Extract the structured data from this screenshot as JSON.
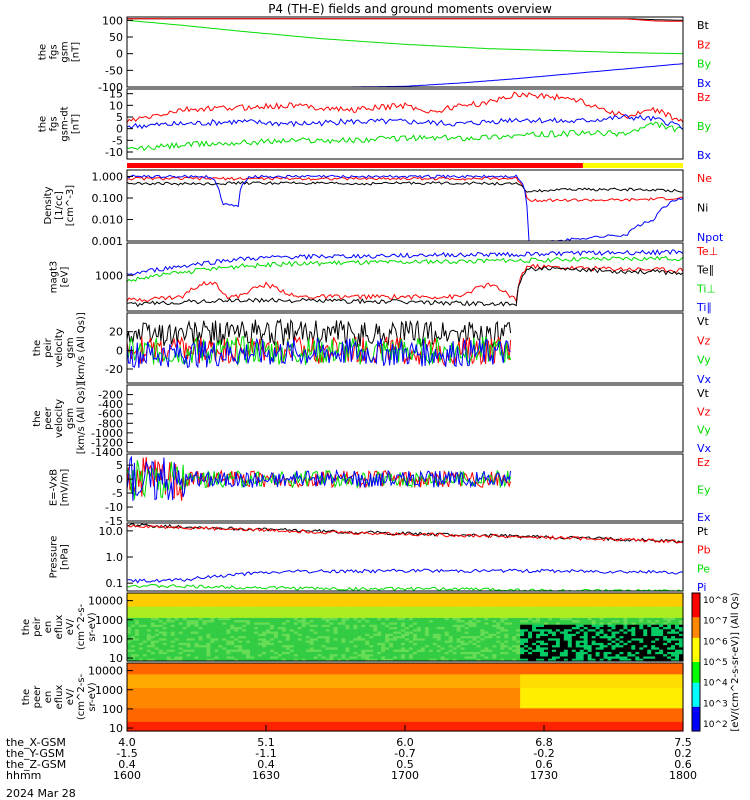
{
  "title": "P4 (TH-E) fields and ground moments overview",
  "colors": {
    "black": "#000000",
    "red": "#ff0000",
    "green": "#00dd00",
    "blue": "#0000ff",
    "yellow": "#ffff00"
  },
  "chart_data": [
    {
      "type": "line",
      "name": "fgs_gsm",
      "ylabel_lines": [
        "the",
        "fgs",
        "gsm",
        "[nT]"
      ],
      "ylim": [
        -100,
        110
      ],
      "yticks": [
        "100",
        "50",
        "0",
        "-50",
        "-100"
      ],
      "ytick_values": [
        100,
        50,
        0,
        -50,
        -100
      ],
      "legend": [
        "Bt",
        "Bz",
        "By",
        "Bx"
      ],
      "series": [
        {
          "name": "Bt",
          "color": "black",
          "x": [
            0,
            0.8,
            0.9,
            0.95,
            1
          ],
          "y": [
            105,
            105,
            105,
            102,
            100
          ]
        },
        {
          "name": "Bz",
          "color": "red",
          "x": [
            0,
            0.8,
            0.9,
            0.95,
            1
          ],
          "y": [
            105,
            105,
            104,
            98,
            97
          ]
        },
        {
          "name": "By",
          "color": "green",
          "x": [
            0,
            0.1,
            0.2,
            0.35,
            0.5,
            0.65,
            0.8,
            0.9,
            1
          ],
          "y": [
            100,
            85,
            68,
            45,
            28,
            15,
            8,
            3,
            0
          ]
        },
        {
          "name": "Bx",
          "color": "blue",
          "x": [
            0,
            0.2,
            0.4,
            0.5,
            0.6,
            0.7,
            0.8,
            0.9,
            1
          ],
          "y": [
            -100,
            -100,
            -100,
            -98,
            -88,
            -75,
            -60,
            -45,
            -30
          ]
        }
      ]
    },
    {
      "type": "line",
      "name": "fgs_gse_detrended",
      "ylabel_lines": [
        "the",
        "fgs",
        "gsm-dt",
        "[nT]"
      ],
      "ylim": [
        -13,
        17
      ],
      "yticks": [
        "15",
        "10",
        "5",
        "0",
        "-5",
        "-10"
      ],
      "ytick_values": [
        15,
        10,
        5,
        0,
        -5,
        -10
      ],
      "legend": [
        "Bz",
        "By",
        "Bx"
      ],
      "series": [
        {
          "name": "Bz",
          "color": "red",
          "x": [
            0,
            0.1,
            0.2,
            0.3,
            0.4,
            0.5,
            0.55,
            0.6,
            0.65,
            0.7,
            0.75,
            0.8,
            0.85,
            0.9,
            0.95,
            1
          ],
          "y": [
            3,
            8,
            9,
            10,
            8,
            10,
            7,
            10,
            11,
            15,
            14,
            13,
            9,
            5,
            8,
            3
          ]
        },
        {
          "name": "By",
          "color": "green",
          "x": [
            0,
            0.1,
            0.2,
            0.3,
            0.4,
            0.5,
            0.6,
            0.7,
            0.8,
            0.9,
            0.95,
            1
          ],
          "y": [
            -9,
            -7,
            -6,
            -5,
            -5,
            -4,
            -4,
            -3,
            -2,
            -2,
            2,
            -1
          ]
        },
        {
          "name": "Bx",
          "color": "blue",
          "x": [
            0,
            0.1,
            0.2,
            0.3,
            0.4,
            0.5,
            0.6,
            0.7,
            0.8,
            0.9,
            0.95,
            1
          ],
          "y": [
            1,
            2,
            3,
            2,
            3,
            3,
            2,
            4,
            3,
            5,
            4,
            1
          ]
        }
      ]
    },
    {
      "type": "line",
      "name": "density",
      "yscale": "log",
      "ylabel_lines": [
        "Density",
        "[1/cc]",
        "[cm^-3]"
      ],
      "ylim": [
        0.001,
        2
      ],
      "yticks": [
        "1.000",
        "0.100",
        "0.010",
        "0.001"
      ],
      "ytick_values": [
        1,
        0.1,
        0.01,
        0.001
      ],
      "legend": [
        "Ne",
        "Ni",
        "Npot"
      ],
      "series": [
        {
          "name": "Ne",
          "color": "red",
          "x": [
            0,
            0.15,
            0.2,
            0.25,
            0.3,
            0.35,
            0.55,
            0.6,
            0.65,
            0.7,
            0.72,
            0.8,
            0.9,
            1
          ],
          "y": [
            0.8,
            0.8,
            0.8,
            0.8,
            0.8,
            0.8,
            0.8,
            0.8,
            0.8,
            0.8,
            0.08,
            0.08,
            0.08,
            0.1
          ]
        },
        {
          "name": "Ni",
          "color": "black",
          "x": [
            0,
            0.1,
            0.2,
            0.3,
            0.4,
            0.5,
            0.6,
            0.7,
            0.72,
            0.8,
            0.9,
            1
          ],
          "y": [
            0.5,
            0.45,
            0.5,
            0.5,
            0.45,
            0.5,
            0.5,
            0.45,
            0.2,
            0.25,
            0.25,
            0.22
          ]
        },
        {
          "name": "Npot",
          "color": "blue",
          "x": [
            0,
            0.15,
            0.17,
            0.2,
            0.22,
            0.3,
            0.5,
            0.6,
            0.7,
            0.72,
            0.75,
            0.9,
            0.95,
            1
          ],
          "y": [
            1,
            1,
            0.05,
            0.04,
            1,
            1,
            1,
            1,
            1,
            0.001,
            0.0008,
            0.002,
            0.01,
            0.1
          ]
        }
      ]
    },
    {
      "type": "line",
      "name": "temperature",
      "yscale": "log",
      "ylabel_lines": [
        "magt3",
        "[eV]"
      ],
      "ylim": [
        100,
        8000
      ],
      "yticks": [
        "1000"
      ],
      "ytick_values": [
        1000
      ],
      "legend": [
        "Te⊥",
        "Te∥",
        "Ti⊥",
        "Ti∥"
      ],
      "series": [
        {
          "name": "Te⊥",
          "color": "red",
          "x": [
            0,
            0.1,
            0.15,
            0.18,
            0.2,
            0.25,
            0.3,
            0.5,
            0.6,
            0.65,
            0.7,
            0.72,
            0.8,
            0.9,
            1
          ],
          "y": [
            200,
            250,
            700,
            250,
            250,
            550,
            250,
            250,
            250,
            550,
            200,
            1800,
            1600,
            1500,
            1400
          ]
        },
        {
          "name": "Te∥",
          "color": "black",
          "x": [
            0,
            0.1,
            0.2,
            0.3,
            0.5,
            0.6,
            0.7,
            0.72,
            0.8,
            0.9,
            1
          ],
          "y": [
            150,
            180,
            200,
            200,
            180,
            170,
            150,
            1600,
            1400,
            1300,
            1200
          ]
        },
        {
          "name": "Ti⊥",
          "color": "green",
          "x": [
            0,
            0.1,
            0.2,
            0.3,
            0.4,
            0.5,
            0.6,
            0.7,
            0.8,
            0.9,
            1
          ],
          "y": [
            700,
            1200,
            1800,
            2100,
            2300,
            2300,
            2500,
            2600,
            2800,
            2900,
            3000
          ]
        },
        {
          "name": "Ti∥",
          "color": "blue",
          "x": [
            0,
            0.1,
            0.2,
            0.3,
            0.4,
            0.5,
            0.6,
            0.7,
            0.8,
            0.9,
            1
          ],
          "y": [
            1000,
            1800,
            2800,
            3300,
            3400,
            3600,
            3800,
            3900,
            4200,
            4300,
            4500
          ]
        }
      ]
    },
    {
      "type": "line",
      "name": "peir_velocity",
      "ylabel_lines": [
        "the",
        "peir",
        "velocity",
        "gsm",
        "[km/s (All Qs)]"
      ],
      "ylim": [
        -35,
        40
      ],
      "yticks": [
        "20",
        "0",
        "-20"
      ],
      "ytick_values": [
        20,
        0,
        -20
      ],
      "legend": [
        "Vt",
        "Vz",
        "Vy",
        "Vx"
      ],
      "series": [
        {
          "name": "Vt",
          "color": "black",
          "x": [
            0,
            0.2,
            0.4,
            0.6,
            0.69
          ],
          "y": [
            18,
            19,
            18,
            18,
            17
          ]
        },
        {
          "name": "Vz",
          "color": "red",
          "x": [
            0,
            0.2,
            0.4,
            0.6,
            0.69
          ],
          "y": [
            0,
            1,
            0,
            -1,
            0
          ]
        },
        {
          "name": "Vy",
          "color": "green",
          "x": [
            0,
            0.2,
            0.4,
            0.6,
            0.69
          ],
          "y": [
            -2,
            0,
            -1,
            0,
            -1
          ]
        },
        {
          "name": "Vx",
          "color": "blue",
          "x": [
            0,
            0.2,
            0.4,
            0.6,
            0.69
          ],
          "y": [
            -4,
            -3,
            -2,
            -3,
            -2
          ]
        }
      ]
    },
    {
      "type": "line",
      "name": "peer_velocity",
      "ylabel_lines": [
        "the",
        "peer",
        "velocity",
        "gsm",
        "[km/s (All Qs)]"
      ],
      "ylim": [
        -1400,
        0
      ],
      "yticks": [
        "-200",
        "-400",
        "-600",
        "-800",
        "-1000",
        "-1200",
        "-1400"
      ],
      "ytick_values": [
        -200,
        -400,
        -600,
        -800,
        -1000,
        -1200,
        -1400
      ],
      "legend": [
        "Vt",
        "Vz",
        "Vy",
        "Vx"
      ],
      "series": []
    },
    {
      "type": "line",
      "name": "efield",
      "ylabel_lines": [
        "E=-VxB",
        "[mV/m]"
      ],
      "ylim": [
        -15,
        9
      ],
      "yticks": [
        "5",
        "0",
        "-5",
        "-10",
        "-15"
      ],
      "ytick_values": [
        5,
        0,
        -5,
        -10,
        -15
      ],
      "legend": [
        "Ez",
        "Ey",
        "Ex"
      ],
      "series": [
        {
          "name": "Ez",
          "color": "red",
          "x": [
            0,
            0.2,
            0.4,
            0.6,
            0.69
          ],
          "y": [
            0,
            0,
            0,
            0,
            0
          ]
        },
        {
          "name": "Ey",
          "color": "green",
          "x": [
            0,
            0.2,
            0.4,
            0.6,
            0.69
          ],
          "y": [
            0,
            0,
            0,
            0,
            0
          ]
        },
        {
          "name": "Ex",
          "color": "blue",
          "x": [
            0,
            0.2,
            0.4,
            0.6,
            0.69
          ],
          "y": [
            0,
            0,
            0,
            0,
            0
          ]
        }
      ]
    },
    {
      "type": "line",
      "name": "pressure",
      "yscale": "log",
      "ylabel_lines": [
        "Pressure",
        "[nPa]"
      ],
      "ylim": [
        0.05,
        20
      ],
      "yticks": [
        "10.0",
        "1.0",
        "0.1"
      ],
      "ytick_values": [
        10,
        1,
        0.1
      ],
      "legend": [
        "Pt",
        "Pb",
        "Pe",
        "Pi"
      ],
      "series": [
        {
          "name": "Pt",
          "color": "black",
          "x": [
            0,
            0.2,
            0.4,
            0.6,
            0.8,
            1
          ],
          "y": [
            17,
            12,
            9,
            7,
            5.5,
            4
          ]
        },
        {
          "name": "Pb",
          "color": "red",
          "x": [
            0,
            0.2,
            0.4,
            0.6,
            0.8,
            1
          ],
          "y": [
            16,
            11.5,
            8.5,
            6.8,
            5.3,
            3.9
          ]
        },
        {
          "name": "Pe",
          "color": "green",
          "x": [
            0,
            0.2,
            0.4,
            0.6,
            0.8,
            0.9,
            1
          ],
          "y": [
            0.08,
            0.07,
            0.06,
            0.06,
            0.05,
            0.05,
            0.05
          ]
        },
        {
          "name": "Pi",
          "color": "blue",
          "x": [
            0,
            0.1,
            0.2,
            0.3,
            0.5,
            0.7,
            0.9,
            1
          ],
          "y": [
            0.12,
            0.13,
            0.22,
            0.28,
            0.3,
            0.3,
            0.28,
            0.25
          ]
        }
      ]
    },
    {
      "type": "heatmap",
      "name": "peir_eflux",
      "ylabel_lines": [
        "the",
        "peir",
        "en",
        "eflux",
        "eV/",
        "(cm^2-s-",
        "sr-eV)"
      ],
      "yscale": "log",
      "ylim": [
        7,
        25000
      ],
      "yticks": [
        "10000",
        "1000",
        "100",
        "10"
      ],
      "ytick_values": [
        10000,
        1000,
        100,
        10
      ]
    },
    {
      "type": "heatmap",
      "name": "peer_eflux",
      "ylabel_lines": [
        "the",
        "peer",
        "en",
        "eflux",
        "eV/",
        "(cm^2-s-",
        "sr-eV)"
      ],
      "yscale": "log",
      "ylim": [
        7,
        25000
      ],
      "yticks": [
        "10000",
        "1000",
        "100",
        "10"
      ],
      "ytick_values": [
        10000,
        1000,
        100,
        10
      ]
    }
  ],
  "colorbar": {
    "ticks": [
      "10^8",
      "10^7",
      "10^6",
      "10^5",
      "10^4",
      "10^3",
      "10^2"
    ],
    "label": "[eV/(cm^2-s-sr-eV)] (All Qs)"
  },
  "time_axis": {
    "rows": [
      {
        "label": "the_X-GSM",
        "values": [
          "4.0",
          "5.1",
          "6.0",
          "6.8",
          "7.5"
        ]
      },
      {
        "label": "the_Y-GSM",
        "values": [
          "-1.5",
          "-1.1",
          "-0.7",
          "-0.2",
          "0.2"
        ]
      },
      {
        "label": "the_Z-GSM",
        "values": [
          "0.4",
          "0.4",
          "0.5",
          "0.6",
          "0.6"
        ]
      },
      {
        "label": "hhmm",
        "values": [
          "1600",
          "1630",
          "1700",
          "1730",
          "1800"
        ]
      }
    ],
    "date": "2024 Mar 28"
  }
}
